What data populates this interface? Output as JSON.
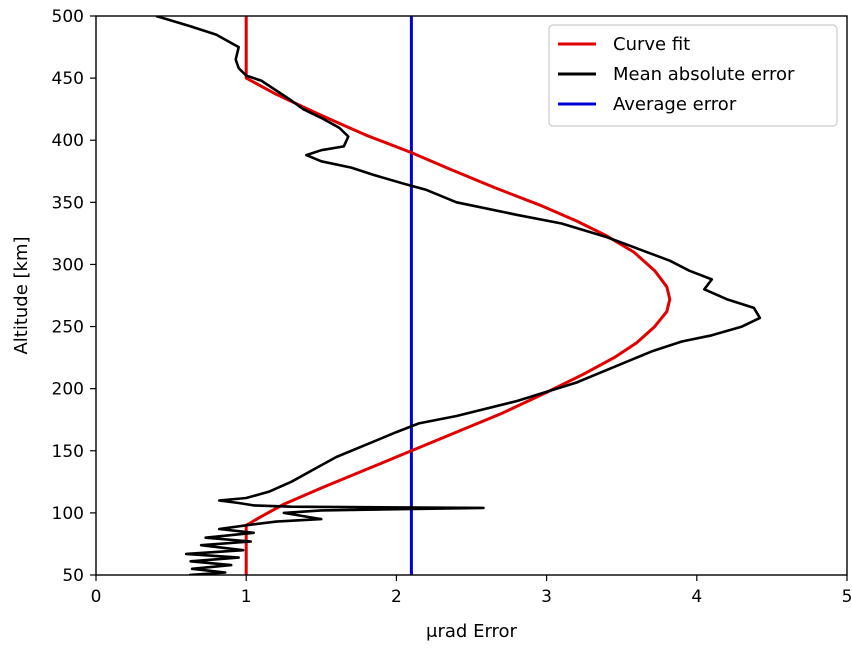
{
  "chart_data": {
    "type": "line",
    "title": "",
    "xlabel": "μrad Error",
    "ylabel": "Altitude [km]",
    "xlim": [
      0,
      5
    ],
    "ylim": [
      50,
      500
    ],
    "xticks": [
      "0",
      "1",
      "2",
      "3",
      "4",
      "5"
    ],
    "yticks": [
      "50",
      "100",
      "150",
      "200",
      "250",
      "300",
      "350",
      "400",
      "450",
      "500"
    ],
    "grid": false,
    "legend_position": "top-right",
    "colors": {
      "curve_fit": "#e00000",
      "mean_absolute_error": "#000000",
      "average_error": "#0000dd"
    },
    "series": [
      {
        "name": "Curve fit",
        "key": "curve_fit",
        "points": [
          [
            1.0,
            50
          ],
          [
            1.0,
            90
          ],
          [
            1.1,
            97
          ],
          [
            1.25,
            107
          ],
          [
            1.5,
            120
          ],
          [
            1.8,
            135
          ],
          [
            2.1,
            150
          ],
          [
            2.4,
            165
          ],
          [
            2.7,
            180
          ],
          [
            3.0,
            197
          ],
          [
            3.25,
            212
          ],
          [
            3.45,
            225
          ],
          [
            3.6,
            237
          ],
          [
            3.72,
            250
          ],
          [
            3.8,
            262
          ],
          [
            3.82,
            272
          ],
          [
            3.8,
            282
          ],
          [
            3.72,
            295
          ],
          [
            3.58,
            310
          ],
          [
            3.4,
            323
          ],
          [
            3.2,
            335
          ],
          [
            2.95,
            348
          ],
          [
            2.65,
            362
          ],
          [
            2.35,
            377
          ],
          [
            2.1,
            390
          ],
          [
            1.8,
            404
          ],
          [
            1.5,
            420
          ],
          [
            1.2,
            437
          ],
          [
            1.0,
            450
          ],
          [
            1.0,
            500
          ]
        ]
      },
      {
        "name": "Mean absolute error",
        "key": "mean_absolute_error",
        "points": [
          [
            0.62,
            50
          ],
          [
            0.86,
            52
          ],
          [
            0.64,
            55
          ],
          [
            0.9,
            58
          ],
          [
            0.63,
            61
          ],
          [
            0.95,
            64
          ],
          [
            0.6,
            67
          ],
          [
            0.98,
            70
          ],
          [
            0.7,
            74
          ],
          [
            1.03,
            77
          ],
          [
            0.73,
            80
          ],
          [
            1.05,
            84
          ],
          [
            0.82,
            87
          ],
          [
            1.0,
            90
          ],
          [
            1.2,
            93
          ],
          [
            1.5,
            95
          ],
          [
            1.4,
            97
          ],
          [
            1.25,
            100
          ],
          [
            1.5,
            102
          ],
          [
            2.58,
            104
          ],
          [
            1.3,
            105
          ],
          [
            1.05,
            106
          ],
          [
            0.95,
            108
          ],
          [
            0.82,
            110
          ],
          [
            1.0,
            112
          ],
          [
            1.15,
            117
          ],
          [
            1.3,
            125
          ],
          [
            1.45,
            135
          ],
          [
            1.6,
            145
          ],
          [
            1.8,
            155
          ],
          [
            2.0,
            165
          ],
          [
            2.15,
            172
          ],
          [
            2.4,
            178
          ],
          [
            2.8,
            190
          ],
          [
            3.2,
            205
          ],
          [
            3.5,
            220
          ],
          [
            3.7,
            230
          ],
          [
            3.9,
            238
          ],
          [
            4.1,
            243
          ],
          [
            4.3,
            250
          ],
          [
            4.42,
            257
          ],
          [
            4.38,
            265
          ],
          [
            4.2,
            272
          ],
          [
            4.05,
            280
          ],
          [
            4.1,
            288
          ],
          [
            3.95,
            295
          ],
          [
            3.82,
            303
          ],
          [
            3.6,
            313
          ],
          [
            3.4,
            322
          ],
          [
            3.1,
            333
          ],
          [
            2.8,
            340
          ],
          [
            2.4,
            350
          ],
          [
            2.2,
            360
          ],
          [
            2.05,
            365
          ],
          [
            1.85,
            372
          ],
          [
            1.7,
            378
          ],
          [
            1.5,
            383
          ],
          [
            1.4,
            388
          ],
          [
            1.5,
            392
          ],
          [
            1.65,
            395
          ],
          [
            1.68,
            403
          ],
          [
            1.62,
            410
          ],
          [
            1.5,
            418
          ],
          [
            1.38,
            425
          ],
          [
            1.3,
            432
          ],
          [
            1.2,
            440
          ],
          [
            1.1,
            448
          ],
          [
            1.0,
            452
          ],
          [
            0.95,
            458
          ],
          [
            0.93,
            465
          ],
          [
            0.95,
            475
          ],
          [
            0.8,
            485
          ],
          [
            0.62,
            492
          ],
          [
            0.4,
            500
          ]
        ]
      },
      {
        "name": "Average error",
        "key": "average_error",
        "points": [
          [
            2.1,
            50
          ],
          [
            2.1,
            500
          ]
        ]
      }
    ]
  }
}
